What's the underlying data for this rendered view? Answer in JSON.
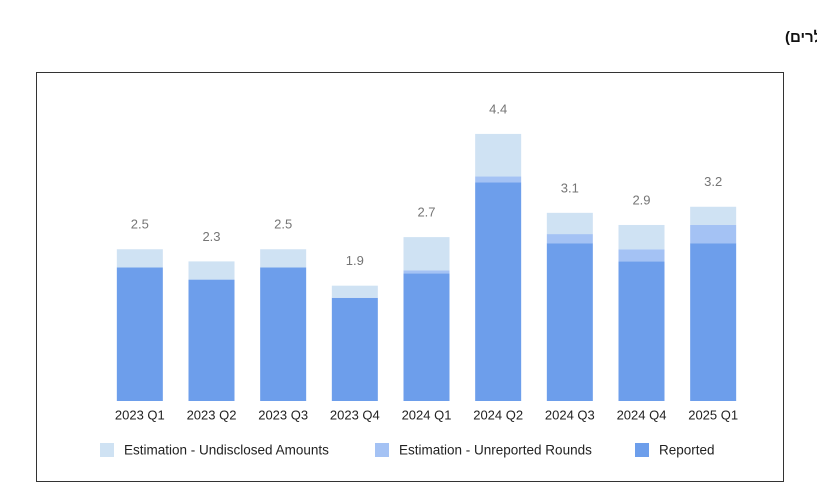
{
  "chart_data": {
    "type": "stacked_bar",
    "title": "היקפי השקעות במימון פרטי (במיליארדי דולרים)",
    "categories": [
      "2023 Q1",
      "2023 Q2",
      "2023 Q3",
      "2023 Q4",
      "2024 Q1",
      "2024 Q2",
      "2024 Q3",
      "2024 Q4",
      "2025 Q1"
    ],
    "series": [
      {
        "name": "Reported",
        "color": "#6d9eeb",
        "values": [
          2.2,
          2.0,
          2.2,
          1.7,
          2.1,
          3.6,
          2.6,
          2.3,
          2.6
        ]
      },
      {
        "name": "Estimation - Unreported Rounds",
        "color": "#a4c2f4",
        "values": [
          0,
          0,
          0,
          0,
          0.05,
          0.1,
          0.15,
          0.2,
          0.3
        ]
      },
      {
        "name": "Estimation - Undisclosed Amounts",
        "color": "#cfe2f3",
        "values": [
          0.3,
          0.3,
          0.3,
          0.2,
          0.55,
          0.7,
          0.35,
          0.4,
          0.3
        ]
      }
    ],
    "total_labels": [
      "2.5",
      "2.3",
      "2.5",
      "1.9",
      "2.7",
      "4.4",
      "3.1",
      "2.9",
      "3.2"
    ],
    "ylim": [
      0,
      5
    ],
    "legend": "bottom"
  }
}
